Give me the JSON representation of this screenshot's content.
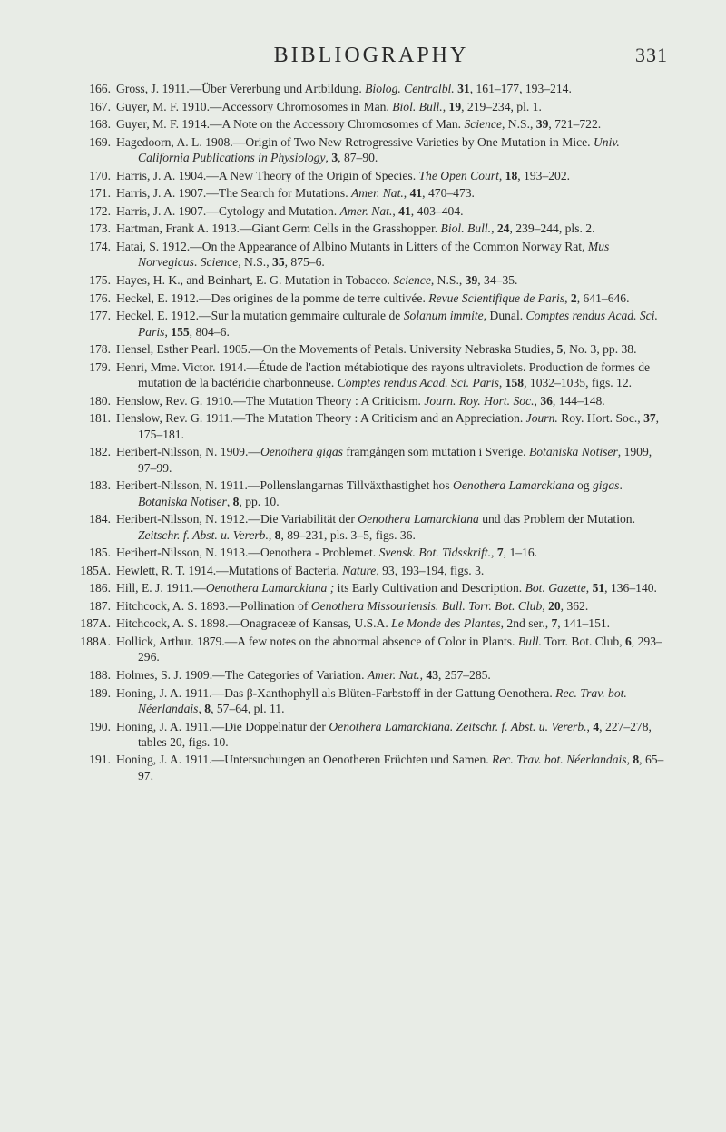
{
  "header": {
    "title": "BIBLIOGRAPHY",
    "page_number": "331"
  },
  "entries": [
    {
      "num": "166.",
      "html": "Gross, J. 1911.—Über Vererbung und Artbildung. <i>Biolog. Centralbl.</i> <b>31</b>, 161–177, 193–214."
    },
    {
      "num": "167.",
      "html": "Guyer, M. F. 1910.—Accessory Chromosomes in Man. <i>Biol. Bull.</i>, <b>19</b>, 219–234, pl. 1."
    },
    {
      "num": "168.",
      "html": "Guyer, M. F. 1914.—A Note on the Accessory Chromosomes of Man. <i>Science</i>, N.S., <b>39</b>, 721–722."
    },
    {
      "num": "169.",
      "html": "Hagedoorn, A. L. 1908.—Origin of Two New Retrogressive Varieties by One Mutation in Mice. <i>Univ. California Publications in Physiology</i>, <b>3</b>, 87–90."
    },
    {
      "num": "170.",
      "html": "Harris, J. A. 1904.—A New Theory of the Origin of Species. <i>The Open Court</i>, <b>18</b>, 193–202."
    },
    {
      "num": "171.",
      "html": "Harris, J. A. 1907.—The Search for Mutations. <i>Amer. Nat.</i>, <b>41</b>, 470–473."
    },
    {
      "num": "172.",
      "html": "Harris, J. A. 1907.—Cytology and Mutation. <i>Amer. Nat.</i>, <b>41</b>, 403–404."
    },
    {
      "num": "173.",
      "html": "Hartman, Frank A. 1913.—Giant Germ Cells in the Grasshopper. <i>Biol. Bull.</i>, <b>24</b>, 239–244, pls. 2."
    },
    {
      "num": "174.",
      "html": "Hatai, S. 1912.—On the Appearance of Albino Mutants in Litters of the Common Norway Rat, <i>Mus Norvegicus</i>. <i>Science</i>, N.S., <b>35</b>, 875–6."
    },
    {
      "num": "175.",
      "html": "Hayes, H. K., and Beinhart, E. G. Mutation in Tobacco. <i>Science</i>, N.S., <b>39</b>, 34–35."
    },
    {
      "num": "176.",
      "html": "Heckel, E. 1912.—Des origines de la pomme de terre cultivée. <i>Revue Scientifique de Paris</i>, <b>2</b>, 641–646."
    },
    {
      "num": "177.",
      "html": "Heckel, E. 1912.—Sur la mutation gemmaire culturale de <i>Solanum immite</i>, Dunal. <i>Comptes rendus Acad. Sci. Paris</i>, <b>155</b>, 804–6."
    },
    {
      "num": "178.",
      "html": "Hensel, Esther Pearl. 1905.—On the Movements of Petals. University Nebraska Studies, <b>5</b>, No. 3, pp. 38."
    },
    {
      "num": "179.",
      "html": "Henri, Mme. Victor. 1914.—Étude de l'action métabiotique des rayons ultraviolets. Production de formes de mutation de la bactéridie charbonneuse. <i>Comptes rendus Acad. Sci. Paris</i>, <b>158</b>, 1032–1035, figs. 12."
    },
    {
      "num": "180.",
      "html": "Henslow, Rev. G. 1910.—The Mutation Theory : A Criticism. <i>Journ. Roy. Hort. Soc.</i>, <b>36</b>, 144–148."
    },
    {
      "num": "181.",
      "html": "Henslow, Rev. G. 1911.—The Mutation Theory : A Criticism and an Appreciation. <i>Journ.</i> Roy. Hort. Soc., <b>37</b>, 175–181."
    },
    {
      "num": "182.",
      "html": "Heribert-Nilsson, N. 1909.—<i>Oenothera gigas</i> framgången som mutation i Sverige. <i>Botaniska Notiser</i>, 1909, 97–99."
    },
    {
      "num": "183.",
      "html": "Heribert-Nilsson, N. 1911.—Pollenslangarnas Tillväxthastighet hos <i>Oenothera Lamarckiana</i> og <i>gigas</i>. <i>Botaniska Notiser</i>, <b>8</b>, pp. 10."
    },
    {
      "num": "184.",
      "html": "Heribert-Nilsson, N. 1912.—Die Variabilität der <i>Oenothera Lamarckiana</i> und das Problem der Mutation. <i>Zeitschr. f. Abst. u. Vererb.</i>, <b>8</b>, 89–231, pls. 3–5, figs. 36."
    },
    {
      "num": "185.",
      "html": "Heribert-Nilsson, N. 1913.—Oenothera - Problemet. <i>Svensk. Bot. Tidsskrift.</i>, <b>7</b>, 1–16."
    },
    {
      "num": "185A.",
      "html": "Hewlett, R. T. 1914.—Mutations of Bacteria. <i>Nature</i>, 93, 193–194, figs. 3."
    },
    {
      "num": "186.",
      "html": "Hill, E. J. 1911.—<i>Oenothera Lamarckiana ;</i> its Early Cultivation and Description. <i>Bot. Gazette</i>, <b>51</b>, 136–140."
    },
    {
      "num": "187.",
      "html": "Hitchcock, A. S. 1893.—Pollination of <i>Oenothera Missouriensis. Bull. Torr. Bot. Club</i>, <b>20</b>, 362."
    },
    {
      "num": "187A.",
      "html": "Hitchcock, A. S. 1898.—Onagraceæ of Kansas, U.S.A. <i>Le Monde des Plantes</i>, 2nd ser., <b>7</b>, 141–151."
    },
    {
      "num": "188A.",
      "html": "Hollick, Arthur. 1879.—A few notes on the abnormal absence of Color in Plants. <i>Bull.</i> Torr. Bot. Club, <b>6</b>, 293–296."
    },
    {
      "num": "188.",
      "html": "Holmes, S. J. 1909.—The Categories of Variation. <i>Amer. Nat.</i>, <b>43</b>, 257–285."
    },
    {
      "num": "189.",
      "html": "Honing, J. A. 1911.—Das β-Xanthophyll als Blüten-Farbstoff in der Gattung Oenothera. <i>Rec. Trav. bot. Néerlandais</i>, <b>8</b>, 57–64, pl. 11."
    },
    {
      "num": "190.",
      "html": "Honing, J. A. 1911.—Die Doppelnatur der <i>Oenothera Lamarckiana. Zeitschr. f. Abst. u. Vererb.</i>, <b>4</b>, 227–278, tables 20, figs. 10."
    },
    {
      "num": "191.",
      "html": "Honing, J. A. 1911.—Untersuchungen an Oenotheren Früchten und Samen. <i>Rec. Trav. bot. Néerlandais</i>, <b>8</b>, 65–97."
    }
  ]
}
